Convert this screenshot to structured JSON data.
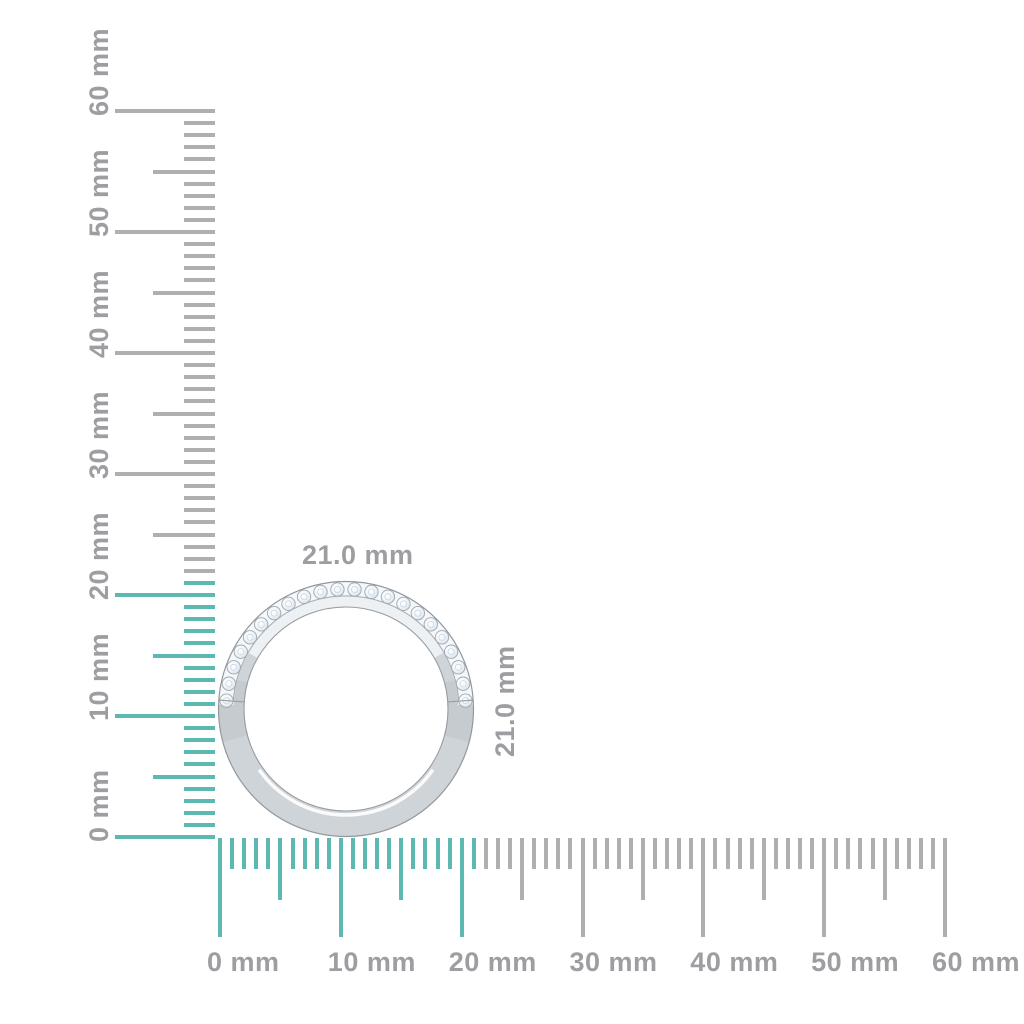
{
  "page": {
    "background": "#ffffff"
  },
  "measurement": {
    "width_label": "21.0 mm",
    "height_label": "21.0 mm",
    "width_mm": 21.0,
    "height_mm": 21.0
  },
  "colors": {
    "tick_teal": "#5db8b1",
    "tick_gray": "#aeafb1",
    "label_gray": "#9c9ea1",
    "ring_edge": "#92989e",
    "ring_metal_base": "#cfd4d8",
    "ring_metal_light": "#eef1f3",
    "diamond_tint": "#dde6ee"
  },
  "vertical_ruler": {
    "unit": "mm",
    "min_mm": 0,
    "max_mm": 60,
    "minor_step_mm": 1,
    "medium_step_mm": 5,
    "major_step_mm": 10,
    "highlight_mm": 21,
    "labels": [
      "0 mm",
      "10 mm",
      "20 mm",
      "30 mm",
      "40 mm",
      "50 mm",
      "60 mm"
    ]
  },
  "horizontal_ruler": {
    "unit": "mm",
    "min_mm": 0,
    "max_mm": 60,
    "minor_step_mm": 1,
    "medium_step_mm": 5,
    "major_step_mm": 10,
    "highlight_mm": 21,
    "labels": [
      "0 mm",
      "10 mm",
      "20 mm",
      "30 mm",
      "40 mm",
      "50 mm",
      "60 mm"
    ]
  },
  "ring": {
    "stone_count": 22
  }
}
